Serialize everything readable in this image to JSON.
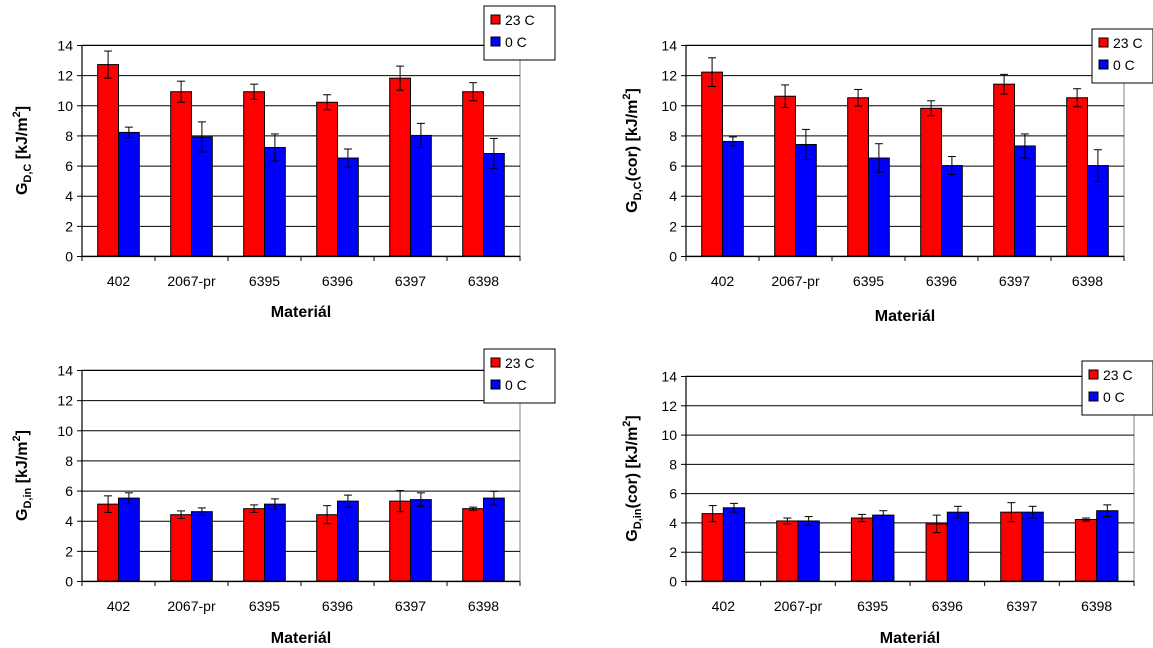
{
  "chart_data": [
    {
      "type": "bar",
      "categories": [
        "402",
        "2067-pr",
        "6395",
        "6396",
        "6397",
        "6398"
      ],
      "series": [
        {
          "name": "23 C",
          "color": "#ff0000",
          "values": [
            12.7,
            10.9,
            10.9,
            10.2,
            11.8,
            10.9
          ],
          "errors": [
            0.9,
            0.7,
            0.5,
            0.5,
            0.8,
            0.6
          ]
        },
        {
          "name": "0 C",
          "color": "#0000ff",
          "values": [
            8.2,
            7.9,
            7.2,
            6.5,
            8.0,
            6.8
          ],
          "errors": [
            0.35,
            1.0,
            0.9,
            0.6,
            0.8,
            1.0
          ]
        }
      ],
      "ylabel": {
        "main": "G",
        "sub": "D,C",
        "rest": " [kJ/m",
        "sup": "2",
        "end": "]"
      },
      "xlabel": "Materiál",
      "ylim": [
        0,
        14
      ],
      "yticks": [
        0,
        2,
        4,
        6,
        8,
        10,
        12,
        14
      ],
      "grid": true,
      "legend": "top-right"
    },
    {
      "type": "bar",
      "categories": [
        "402",
        "2067-pr",
        "6395",
        "6396",
        "6397",
        "6398"
      ],
      "series": [
        {
          "name": "23 C",
          "color": "#ff0000",
          "values": [
            12.2,
            10.6,
            10.5,
            9.8,
            11.4,
            10.5
          ],
          "errors": [
            0.95,
            0.75,
            0.55,
            0.5,
            0.65,
            0.6
          ]
        },
        {
          "name": "0 C",
          "color": "#0000ff",
          "values": [
            7.6,
            7.4,
            6.5,
            6.0,
            7.3,
            6.0
          ],
          "errors": [
            0.3,
            1.0,
            0.95,
            0.6,
            0.8,
            1.05
          ]
        }
      ],
      "ylabel": {
        "main": "G",
        "sub": "D,C",
        "rest": "(cor) [kJ/m",
        "sup": "2",
        "end": "]"
      },
      "xlabel": "Materiál",
      "ylim": [
        0,
        14
      ],
      "yticks": [
        0,
        2,
        4,
        6,
        8,
        10,
        12,
        14
      ],
      "grid": true,
      "legend": "top-right"
    },
    {
      "type": "bar",
      "categories": [
        "402",
        "2067-pr",
        "6395",
        "6396",
        "6397",
        "6398"
      ],
      "series": [
        {
          "name": "23 C",
          "color": "#ff0000",
          "values": [
            5.1,
            4.4,
            4.8,
            4.4,
            5.3,
            4.8
          ],
          "errors": [
            0.55,
            0.25,
            0.25,
            0.6,
            0.7,
            0.1
          ]
        },
        {
          "name": "0 C",
          "color": "#0000ff",
          "values": [
            5.5,
            4.6,
            5.1,
            5.3,
            5.4,
            5.5
          ],
          "errors": [
            0.35,
            0.25,
            0.35,
            0.4,
            0.45,
            0.45
          ]
        }
      ],
      "ylabel": {
        "main": "G",
        "sub": "D,in",
        "rest": " [kJ/m",
        "sup": "2",
        "end": "]"
      },
      "xlabel": "Materiál",
      "ylim": [
        0,
        14
      ],
      "yticks": [
        0,
        2,
        4,
        6,
        8,
        10,
        12,
        14
      ],
      "grid": true,
      "legend": "top-right"
    },
    {
      "type": "bar",
      "categories": [
        "402",
        "2067-pr",
        "6395",
        "6396",
        "6397",
        "6398"
      ],
      "series": [
        {
          "name": "23 C",
          "color": "#ff0000",
          "values": [
            4.6,
            4.1,
            4.3,
            3.9,
            4.7,
            4.2
          ],
          "errors": [
            0.55,
            0.2,
            0.25,
            0.6,
            0.65,
            0.1
          ]
        },
        {
          "name": "0 C",
          "color": "#0000ff",
          "values": [
            5.0,
            4.1,
            4.5,
            4.7,
            4.7,
            4.8
          ],
          "errors": [
            0.3,
            0.3,
            0.3,
            0.4,
            0.4,
            0.4
          ]
        }
      ],
      "ylabel": {
        "main": "G",
        "sub": "D,in",
        "rest": "(cor) [kJ/m",
        "sup": "2",
        "end": "]"
      },
      "xlabel": "Materiál",
      "ylim": [
        0,
        14
      ],
      "yticks": [
        0,
        2,
        4,
        6,
        8,
        10,
        12,
        14
      ],
      "grid": true,
      "legend": "top-right"
    }
  ]
}
